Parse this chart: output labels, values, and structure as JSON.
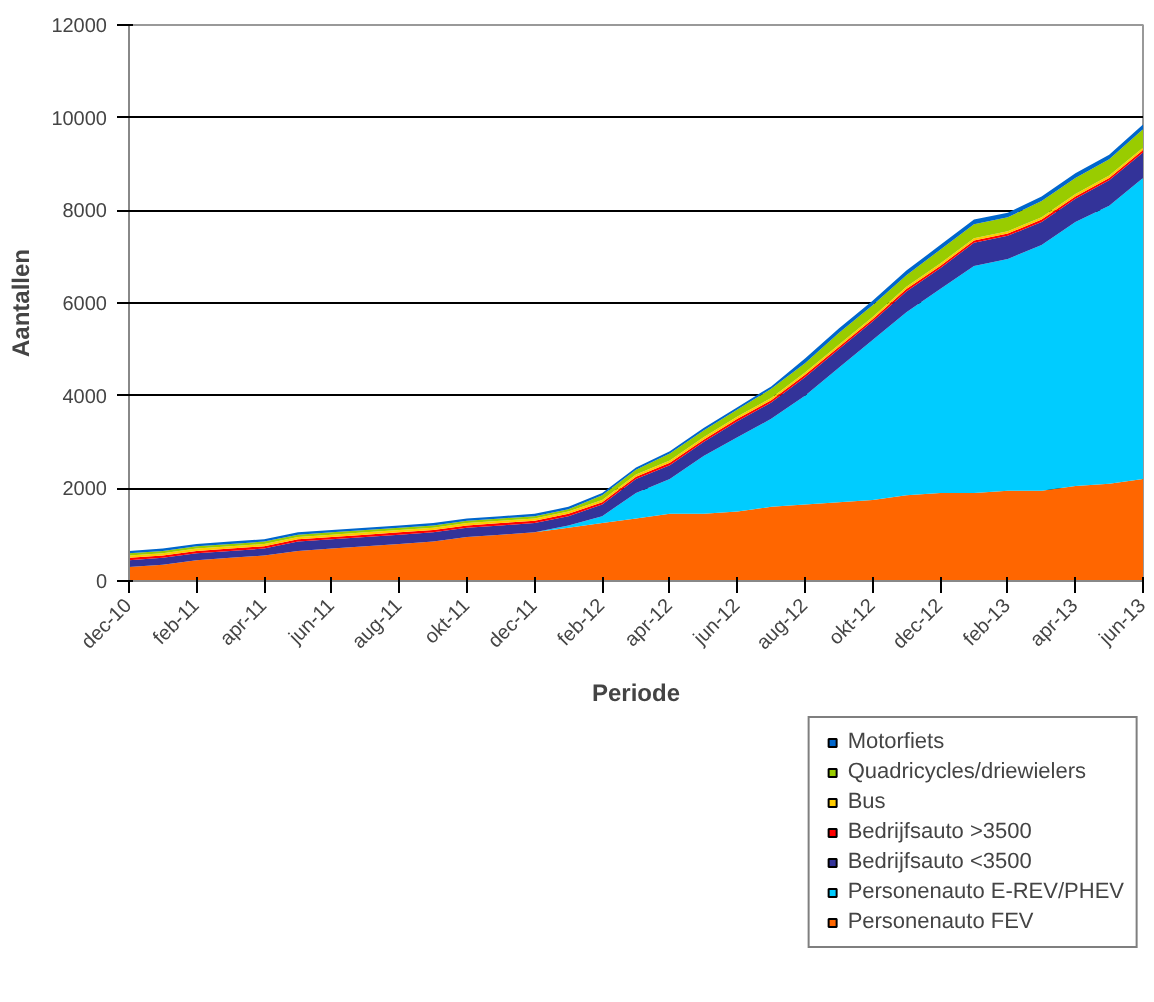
{
  "chart_data": {
    "type": "area",
    "stacked": true,
    "xlabel": "Periode",
    "ylabel": "Aantallen",
    "categories": [
      "dec-10",
      null,
      "feb-11",
      null,
      "apr-11",
      null,
      "jun-11",
      null,
      "aug-11",
      null,
      "okt-11",
      null,
      "dec-11",
      null,
      "feb-12",
      null,
      "apr-12",
      null,
      "jun-12",
      null,
      "aug-12",
      null,
      "okt-12",
      null,
      "dec-12",
      null,
      "feb-13",
      null,
      "apr-13",
      null,
      "jun-13"
    ],
    "ylim": [
      0,
      12000
    ],
    "yticks": [
      0,
      2000,
      4000,
      6000,
      8000,
      10000,
      12000
    ],
    "grid": "y",
    "legend": "bottom right",
    "series": [
      {
        "name": "Personenauto FEV",
        "color": "#ff6600",
        "values": [
          300,
          350,
          450,
          500,
          550,
          650,
          700,
          750,
          800,
          850,
          950,
          1000,
          1050,
          1150,
          1250,
          1350,
          1450,
          1450,
          1500,
          1600,
          1650,
          1700,
          1750,
          1850,
          1900,
          1900,
          1950,
          1950,
          2050,
          2100,
          2200
        ]
      },
      {
        "name": "Personenauto E-REV/PHEV",
        "color": "#00ccff",
        "values": [
          0,
          0,
          0,
          0,
          0,
          0,
          0,
          0,
          0,
          0,
          0,
          0,
          0,
          50,
          150,
          550,
          750,
          1250,
          1600,
          1900,
          2350,
          2900,
          3450,
          3950,
          4400,
          4900,
          5000,
          5300,
          5700,
          6000,
          6500
        ]
      },
      {
        "name": "Bedrijfsauto <3500",
        "color": "#333399",
        "values": [
          150,
          150,
          150,
          150,
          150,
          200,
          200,
          200,
          200,
          200,
          200,
          200,
          200,
          200,
          250,
          300,
          300,
          300,
          350,
          350,
          400,
          400,
          400,
          450,
          450,
          500,
          500,
          500,
          500,
          550,
          550
        ]
      },
      {
        "name": "Bedrijfsauto >3500",
        "color": "#ff0000",
        "values": [
          50,
          50,
          50,
          50,
          50,
          50,
          50,
          50,
          50,
          50,
          50,
          50,
          50,
          50,
          50,
          50,
          50,
          50,
          50,
          50,
          50,
          50,
          50,
          50,
          50,
          50,
          50,
          50,
          50,
          50,
          50
        ]
      },
      {
        "name": "Bus",
        "color": "#ffcc00",
        "values": [
          50,
          50,
          50,
          50,
          50,
          50,
          50,
          50,
          50,
          50,
          50,
          50,
          50,
          50,
          50,
          50,
          50,
          50,
          50,
          50,
          50,
          50,
          50,
          50,
          50,
          50,
          50,
          50,
          50,
          50,
          50
        ]
      },
      {
        "name": "Quadricycles/driewielers",
        "color": "#99cc00",
        "values": [
          50,
          50,
          50,
          50,
          50,
          50,
          50,
          50,
          50,
          50,
          50,
          50,
          50,
          50,
          100,
          100,
          150,
          150,
          150,
          200,
          200,
          250,
          250,
          250,
          300,
          300,
          300,
          350,
          350,
          350,
          400
        ]
      },
      {
        "name": "Motorfiets",
        "color": "#0066cc",
        "values": [
          50,
          50,
          50,
          50,
          50,
          50,
          50,
          50,
          50,
          50,
          50,
          50,
          50,
          50,
          50,
          50,
          50,
          50,
          50,
          50,
          100,
          100,
          100,
          100,
          100,
          100,
          100,
          100,
          100,
          100,
          100
        ]
      }
    ]
  }
}
